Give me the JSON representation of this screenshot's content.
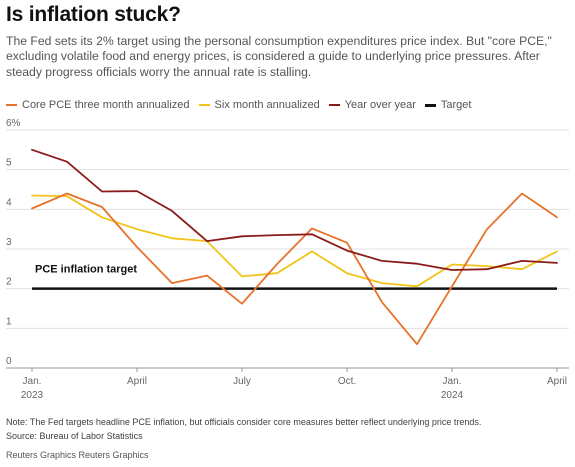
{
  "header": {
    "title": "Is inflation stuck?",
    "subtitle": "The Fed sets its 2% target using the personal consumption expenditures price index. But \"core PCE,\" excluding volatile food and energy prices, is considered a guide to underlying price pressures. After steady progress officials worry the annual rate is stalling."
  },
  "legend": [
    {
      "label": "Core PCE three month annualized",
      "color": "#e8722c"
    },
    {
      "label": "Six month annualized",
      "color": "#f2c41a"
    },
    {
      "label": "Year over year",
      "color": "#8b1a1a"
    },
    {
      "label": "Target",
      "color": "#111111"
    }
  ],
  "footer": {
    "note": "Note: The Fed targets headline PCE inflation, but officials consider core measures better reflect underlying price trends.",
    "source": "Source: Bureau of Labor Statistics",
    "credit": "Reuters Graphics Reuters Graphics"
  },
  "chart_data": {
    "type": "line",
    "x": [
      "2023-01",
      "2023-02",
      "2023-03",
      "2023-04",
      "2023-05",
      "2023-06",
      "2023-07",
      "2023-08",
      "2023-09",
      "2023-10",
      "2023-11",
      "2023-12",
      "2024-01",
      "2024-02",
      "2024-03",
      "2024-04"
    ],
    "ylim": [
      0,
      6
    ],
    "yticks": [
      0,
      1,
      2,
      3,
      4,
      5,
      6
    ],
    "ytick_labels": [
      "0",
      "1",
      "2",
      "3",
      "4",
      "5",
      "6%"
    ],
    "xticks": [
      {
        "x": "2023-01",
        "label": "Jan.",
        "sublabel": "2023"
      },
      {
        "x": "2023-04",
        "label": "April",
        "sublabel": ""
      },
      {
        "x": "2023-07",
        "label": "July",
        "sublabel": ""
      },
      {
        "x": "2023-10",
        "label": "Oct.",
        "sublabel": ""
      },
      {
        "x": "2024-01",
        "label": "Jan.",
        "sublabel": "2024"
      },
      {
        "x": "2024-04",
        "label": "April",
        "sublabel": ""
      }
    ],
    "grid": "horizontal",
    "series": [
      {
        "name": "Core PCE three month annualized",
        "color": "#e8722c",
        "values": [
          4.02,
          4.4,
          4.06,
          3.05,
          2.14,
          2.33,
          1.62,
          2.62,
          3.52,
          3.16,
          1.66,
          0.6,
          2.06,
          3.5,
          4.4,
          3.8
        ]
      },
      {
        "name": "Six month annualized",
        "color": "#f2c41a",
        "values": [
          4.35,
          4.33,
          3.8,
          3.5,
          3.27,
          3.2,
          2.31,
          2.39,
          2.94,
          2.39,
          2.14,
          2.06,
          2.61,
          2.57,
          2.49,
          2.94
        ]
      },
      {
        "name": "Year over year",
        "color": "#8b1a1a",
        "values": [
          5.5,
          5.2,
          4.45,
          4.46,
          3.96,
          3.2,
          3.32,
          3.35,
          3.37,
          2.96,
          2.7,
          2.63,
          2.47,
          2.49,
          2.7,
          2.65
        ]
      }
    ],
    "target": {
      "name": "Target",
      "value": 2,
      "label": "PCE inflation target",
      "color": "#111111"
    }
  }
}
